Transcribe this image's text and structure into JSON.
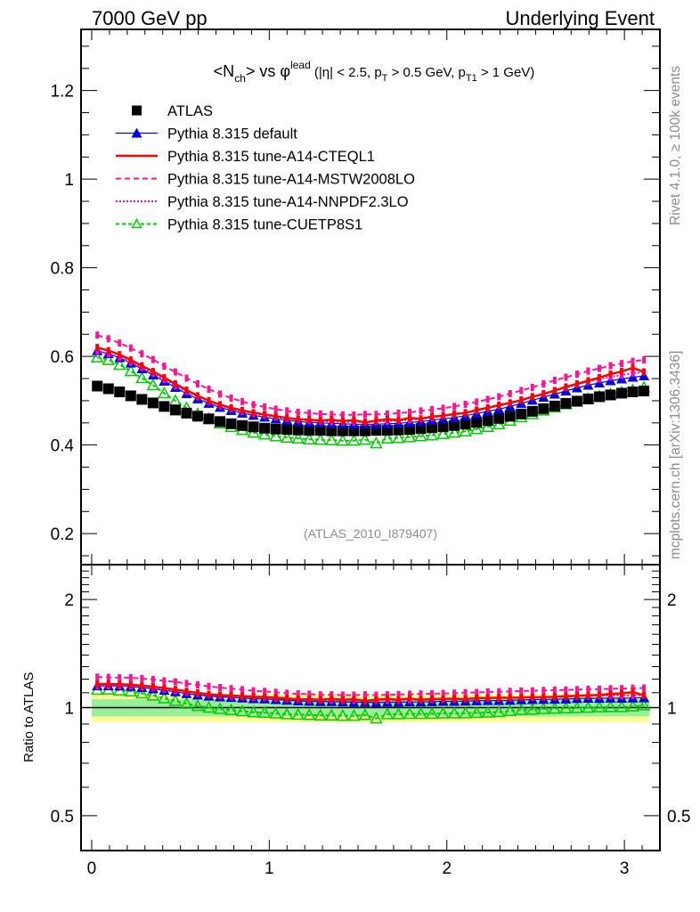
{
  "header": {
    "left": "7000 GeV pp",
    "right": "Underlying Event"
  },
  "side_labels": {
    "top": "Rivet 4.1.0, ≥ 100k events",
    "bottom": "mcplots.cern.ch [arXiv:1306.3436]"
  },
  "analysis_id": "(ATLAS_2010_I879407)",
  "chart_data": [
    {
      "type": "scatter",
      "panel": "main",
      "title": {
        "main": "<N",
        "sub_ch": "ch",
        "mid": "> vs φ",
        "sup": "lead",
        "cuts": " (|η| < 2.5, p",
        "sub_T": "T",
        "cuts2": " > 0.5 GeV, p",
        "sub_T1": "T1",
        "cuts3": " > 1 GeV)"
      },
      "xlabel": "",
      "ylabel": "",
      "xlim": [
        -0.06,
        3.2
      ],
      "ylim": [
        0.13,
        1.338
      ],
      "xticks": [
        0,
        1,
        2,
        3
      ],
      "yticks": [
        0.2,
        0.4,
        0.6,
        0.8,
        1,
        1.2
      ],
      "ytick_labels": [
        "0.2",
        "0.4",
        "0.6",
        "0.8",
        "1",
        "1.2"
      ],
      "xtick_labels": [
        "0",
        "1",
        "2",
        "3"
      ],
      "legend_position": "top-left",
      "bins": 50,
      "x_range": [
        0,
        3.14159
      ],
      "series": [
        {
          "name": "ATLAS",
          "style": "square",
          "color": "#000000",
          "values": [
            0.533,
            0.527,
            0.52,
            0.511,
            0.503,
            0.495,
            0.487,
            0.479,
            0.472,
            0.465,
            0.459,
            0.453,
            0.448,
            0.444,
            0.441,
            0.438,
            0.436,
            0.435,
            0.434,
            0.433,
            0.433,
            0.432,
            0.432,
            0.432,
            0.432,
            0.433,
            0.433,
            0.434,
            0.435,
            0.437,
            0.439,
            0.441,
            0.444,
            0.447,
            0.451,
            0.455,
            0.46,
            0.465,
            0.47,
            0.476,
            0.482,
            0.488,
            0.494,
            0.499,
            0.504,
            0.509,
            0.513,
            0.517,
            0.52,
            0.522
          ]
        },
        {
          "name": "Pythia 8.315 default",
          "style": "line-triangle",
          "color": "#0000dd",
          "values": [
            0.613,
            0.606,
            0.597,
            0.585,
            0.572,
            0.558,
            0.544,
            0.53,
            0.516,
            0.504,
            0.494,
            0.485,
            0.478,
            0.472,
            0.467,
            0.463,
            0.459,
            0.456,
            0.453,
            0.451,
            0.45,
            0.449,
            0.448,
            0.447,
            0.447,
            0.447,
            0.448,
            0.449,
            0.451,
            0.453,
            0.456,
            0.459,
            0.462,
            0.466,
            0.471,
            0.476,
            0.481,
            0.487,
            0.494,
            0.501,
            0.508,
            0.515,
            0.522,
            0.529,
            0.535,
            0.54,
            0.545,
            0.549,
            0.553,
            0.556
          ]
        },
        {
          "name": "Pythia 8.315 tune-A14-CTEQL1",
          "style": "solid",
          "color": "#ff0000",
          "values": [
            0.62,
            0.613,
            0.604,
            0.592,
            0.579,
            0.566,
            0.552,
            0.538,
            0.524,
            0.511,
            0.5,
            0.491,
            0.484,
            0.478,
            0.473,
            0.469,
            0.465,
            0.461,
            0.458,
            0.457,
            0.455,
            0.457,
            0.454,
            0.456,
            0.451,
            0.455,
            0.458,
            0.456,
            0.461,
            0.459,
            0.464,
            0.466,
            0.47,
            0.472,
            0.479,
            0.484,
            0.49,
            0.495,
            0.501,
            0.509,
            0.515,
            0.523,
            0.531,
            0.538,
            0.545,
            0.552,
            0.56,
            0.566,
            0.574,
            0.565
          ]
        },
        {
          "name": "Pythia 8.315 tune-A14-MSTW2008LO",
          "style": "dashed",
          "color": "#ff1493",
          "values": [
            0.648,
            0.64,
            0.63,
            0.619,
            0.606,
            0.593,
            0.578,
            0.565,
            0.551,
            0.538,
            0.526,
            0.515,
            0.506,
            0.498,
            0.491,
            0.486,
            0.481,
            0.477,
            0.474,
            0.472,
            0.47,
            0.469,
            0.468,
            0.468,
            0.469,
            0.469,
            0.47,
            0.472,
            0.474,
            0.477,
            0.48,
            0.483,
            0.487,
            0.492,
            0.497,
            0.503,
            0.509,
            0.516,
            0.523,
            0.53,
            0.538,
            0.546,
            0.553,
            0.56,
            0.567,
            0.573,
            0.579,
            0.584,
            0.589,
            0.592
          ]
        },
        {
          "name": "Pythia 8.315 tune-A14-NNPDF2.3LO",
          "style": "dotted",
          "color": "#ff00dd",
          "values": [
            0.612,
            0.606,
            0.598,
            0.587,
            0.575,
            0.562,
            0.548,
            0.534,
            0.521,
            0.509,
            0.498,
            0.489,
            0.482,
            0.476,
            0.471,
            0.467,
            0.463,
            0.46,
            0.457,
            0.455,
            0.454,
            0.453,
            0.452,
            0.452,
            0.452,
            0.453,
            0.454,
            0.455,
            0.457,
            0.459,
            0.462,
            0.465,
            0.469,
            0.473,
            0.478,
            0.483,
            0.489,
            0.495,
            0.502,
            0.509,
            0.516,
            0.523,
            0.53,
            0.537,
            0.543,
            0.549,
            0.554,
            0.558,
            0.562,
            0.565
          ]
        },
        {
          "name": "Pythia 8.315 tune-CUETP8S1",
          "style": "dashed-open-triangle",
          "color": "#00cc00",
          "values": [
            0.598,
            0.592,
            0.581,
            0.567,
            0.551,
            0.535,
            0.517,
            0.5,
            0.484,
            0.47,
            0.459,
            0.449,
            0.441,
            0.434,
            0.428,
            0.424,
            0.42,
            0.417,
            0.415,
            0.413,
            0.412,
            0.411,
            0.41,
            0.41,
            0.412,
            0.404,
            0.415,
            0.416,
            0.418,
            0.42,
            0.422,
            0.425,
            0.428,
            0.431,
            0.436,
            0.441,
            0.447,
            0.455,
            0.463,
            0.47,
            0.478,
            0.485,
            0.492,
            0.498,
            0.504,
            0.51,
            0.515,
            0.519,
            0.524,
            0.53
          ]
        }
      ]
    },
    {
      "type": "scatter",
      "panel": "ratio",
      "ylabel": "Ratio to ATLAS",
      "yscale": "log",
      "ylim": [
        0.4,
        2.5
      ],
      "yticks": [
        0.5,
        1,
        2
      ],
      "ytick_labels": [
        "0.5",
        "1",
        "2"
      ],
      "xticks": [
        0,
        1,
        2,
        3
      ],
      "xtick_labels": [
        "0",
        "1",
        "2",
        "3"
      ],
      "xlim": [
        -0.06,
        3.2
      ],
      "reference_line": 1,
      "uncertainty_band": {
        "inner": 0.055,
        "outer": 0.09,
        "inner_color": "#99ee99",
        "outer_color": "#ffff99"
      },
      "note": "ratio series = each MC series divided by ATLAS values"
    }
  ]
}
